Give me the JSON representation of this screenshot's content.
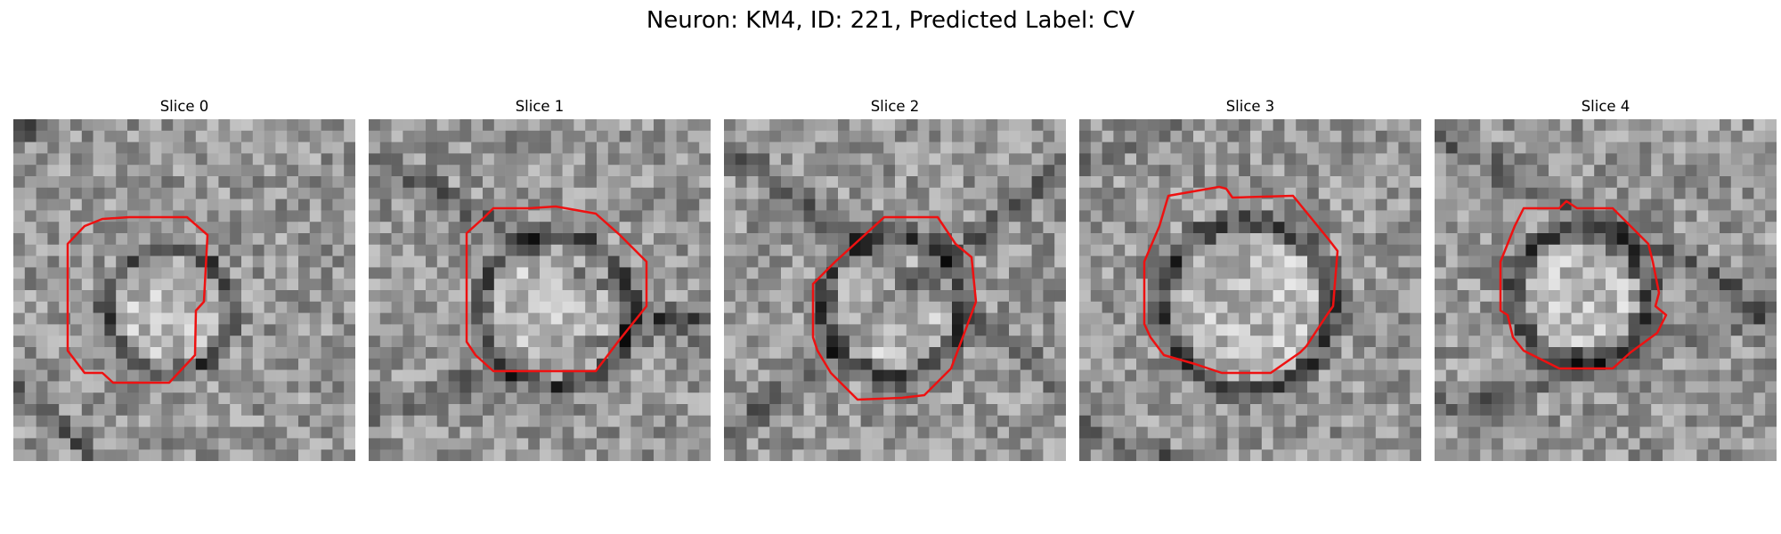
{
  "figure": {
    "title": "Neuron: KM4, ID: 221, Predicted Label: CV"
  },
  "colors": {
    "contour": "#ee1111",
    "background": "#ffffff",
    "text": "#000000"
  },
  "image_grid": {
    "cells_per_side": 30,
    "colormap": "grayscale"
  },
  "slices": [
    {
      "label": "Slice 0"
    },
    {
      "label": "Slice 1"
    },
    {
      "label": "Slice 2"
    },
    {
      "label": "Slice 3"
    },
    {
      "label": "Slice 4"
    }
  ]
}
